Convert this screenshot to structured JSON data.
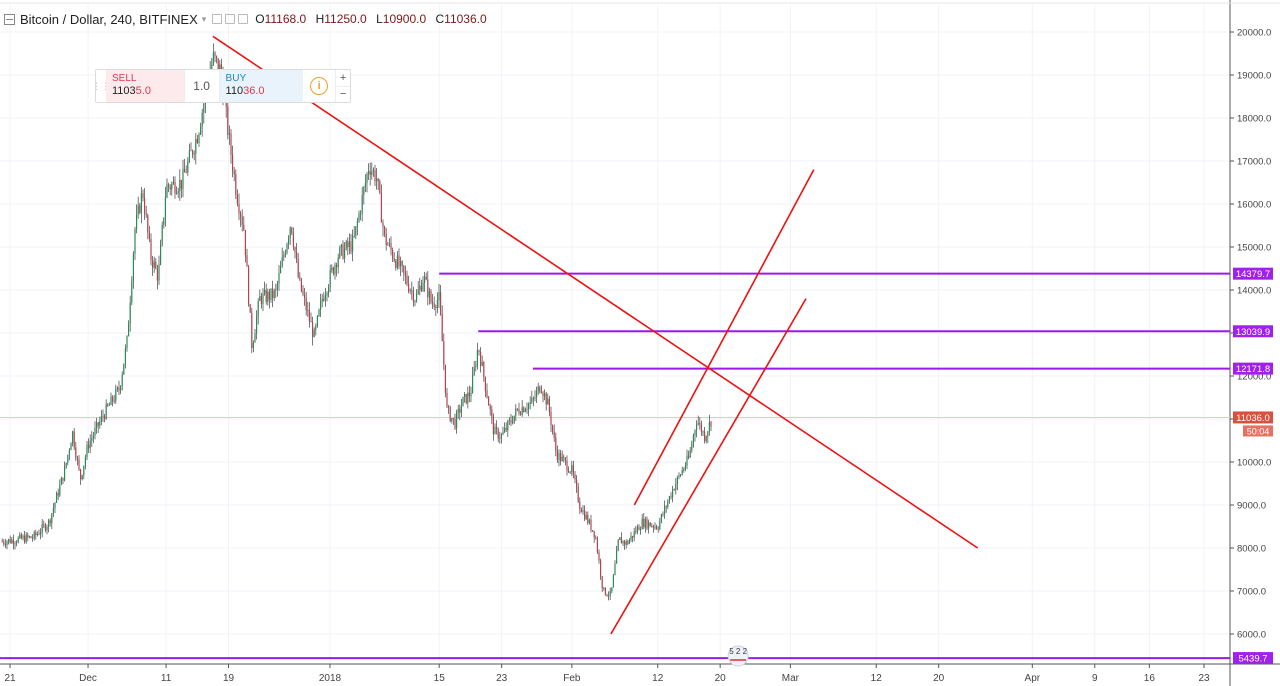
{
  "header": {
    "symbol": "Bitcoin / Dollar, 240, BITFINEX",
    "o_label": "O",
    "o_value": "11168.0",
    "h_label": "H",
    "h_value": "11250.0",
    "l_label": "L",
    "l_value": "10900.0",
    "c_label": "C",
    "c_value": "11036.0"
  },
  "trade_panel": {
    "sell_label": "SELL",
    "sell_price_main": "1103",
    "sell_price_tail": "5.0",
    "quantity": "1.0",
    "buy_label": "BUY",
    "buy_price_main": "110",
    "buy_price_tail": "36.0",
    "info_glyph": "i",
    "plus_glyph": "+",
    "minus_glyph": "−"
  },
  "colors": {
    "trendline": "#ee1111",
    "level_line": "#9b1be0",
    "level_label_bg": "#a020f0",
    "price_label_bg": "#d95040",
    "countdown_bg": "#e87060",
    "grid": "#f0f3f8"
  },
  "chart_data": {
    "type": "candlestick",
    "y_axis": {
      "ylim": [
        5400,
        20400
      ],
      "ticks": [
        "6000.0",
        "7000.0",
        "8000.0",
        "9000.0",
        "10000.0",
        "11000.0",
        "12000.0",
        "13000.0",
        "14000.0",
        "15000.0",
        "16000.0",
        "17000.0",
        "18000.0",
        "19000.0",
        "20000.0"
      ]
    },
    "x_axis": {
      "ticks": [
        {
          "label": "21",
          "date": "2017-11-21"
        },
        {
          "label": "Dec",
          "date": "2017-12-01"
        },
        {
          "label": "11",
          "date": "2017-12-11"
        },
        {
          "label": "19",
          "date": "2017-12-19"
        },
        {
          "label": "2018",
          "date": "2018-01-01"
        },
        {
          "label": "15",
          "date": "2018-01-15"
        },
        {
          "label": "23",
          "date": "2018-01-23"
        },
        {
          "label": "Feb",
          "date": "2018-02-01"
        },
        {
          "label": "12",
          "date": "2018-02-12"
        },
        {
          "label": "20",
          "date": "2018-02-20"
        },
        {
          "label": "Mar",
          "date": "2018-03-01"
        },
        {
          "label": "12",
          "date": "2018-03-12"
        },
        {
          "label": "20",
          "date": "2018-03-20"
        },
        {
          "label": "Apr",
          "date": "2018-04-01"
        },
        {
          "label": "9",
          "date": "2018-04-09"
        },
        {
          "label": "16",
          "date": "2018-04-16"
        },
        {
          "label": "23",
          "date": "2018-04-23"
        }
      ]
    },
    "price_path": [
      [
        "2017-11-20",
        8150
      ],
      [
        "2017-11-24",
        8250
      ],
      [
        "2017-11-26",
        8600
      ],
      [
        "2017-11-28",
        9800
      ],
      [
        "2017-11-29",
        10700
      ],
      [
        "2017-11-30",
        9600
      ],
      [
        "2017-12-01",
        10400
      ],
      [
        "2017-12-03",
        11100
      ],
      [
        "2017-12-05",
        11700
      ],
      [
        "2017-12-06",
        12800
      ],
      [
        "2017-12-07",
        15400
      ],
      [
        "2017-12-08",
        16300
      ],
      [
        "2017-12-09",
        14800
      ],
      [
        "2017-12-10",
        14300
      ],
      [
        "2017-12-11",
        16400
      ],
      [
        "2017-12-13",
        16500
      ],
      [
        "2017-12-15",
        17600
      ],
      [
        "2017-12-17",
        19400
      ],
      [
        "2017-12-18",
        19100
      ],
      [
        "2017-12-19",
        17600
      ],
      [
        "2017-12-20",
        16300
      ],
      [
        "2017-12-21",
        15400
      ],
      [
        "2017-12-22",
        12700
      ],
      [
        "2017-12-23",
        13800
      ],
      [
        "2017-12-25",
        13900
      ],
      [
        "2017-12-27",
        15600
      ],
      [
        "2017-12-28",
        14200
      ],
      [
        "2017-12-30",
        12900
      ],
      [
        "2017-12-31",
        13800
      ],
      [
        "2018-01-02",
        14800
      ],
      [
        "2018-01-04",
        15100
      ],
      [
        "2018-01-06",
        16900
      ],
      [
        "2018-01-07",
        16600
      ],
      [
        "2018-01-08",
        15200
      ],
      [
        "2018-01-10",
        14500
      ],
      [
        "2018-01-12",
        13800
      ],
      [
        "2018-01-13",
        14300
      ],
      [
        "2018-01-14",
        13700
      ],
      [
        "2018-01-15",
        13800
      ],
      [
        "2018-01-16",
        11200
      ],
      [
        "2018-01-17",
        10900
      ],
      [
        "2018-01-18",
        11400
      ],
      [
        "2018-01-19",
        11600
      ],
      [
        "2018-01-20",
        12700
      ],
      [
        "2018-01-22",
        10700
      ],
      [
        "2018-01-23",
        10600
      ],
      [
        "2018-01-25",
        11200
      ],
      [
        "2018-01-27",
        11400
      ],
      [
        "2018-01-28",
        11800
      ],
      [
        "2018-01-29",
        11300
      ],
      [
        "2018-01-30",
        10200
      ],
      [
        "2018-02-01",
        9800
      ],
      [
        "2018-02-02",
        9000
      ],
      [
        "2018-02-04",
        8300
      ],
      [
        "2018-02-05",
        7000
      ],
      [
        "2018-02-06",
        6900
      ],
      [
        "2018-02-07",
        8200
      ],
      [
        "2018-02-08",
        8100
      ],
      [
        "2018-02-10",
        8600
      ],
      [
        "2018-02-12",
        8500
      ],
      [
        "2018-02-14",
        9400
      ],
      [
        "2018-02-16",
        10100
      ],
      [
        "2018-02-17",
        11000
      ],
      [
        "2018-02-18",
        10600
      ],
      [
        "2018-02-19",
        11036
      ]
    ],
    "last_price": "11036.0",
    "countdown": "50:04",
    "horizontal_levels": [
      {
        "value": 14379.7,
        "label": "14379.7",
        "from": "2018-01-15"
      },
      {
        "value": 13039.9,
        "label": "13039.9",
        "from": "2018-01-20"
      },
      {
        "value": 12171.8,
        "label": "12171.8",
        "from": "2018-01-27"
      },
      {
        "value": 5439.7,
        "label": "5439.7",
        "from": "2017-11-20"
      }
    ],
    "trendlines": [
      {
        "from": [
          "2017-12-17",
          19900
        ],
        "to": [
          "2018-03-25",
          8000
        ]
      },
      {
        "from": [
          "2018-02-06",
          6000
        ],
        "to": [
          "2018-03-03",
          13800
        ]
      },
      {
        "from": [
          "2018-02-09",
          9000
        ],
        "to": [
          "2018-03-04",
          16800
        ]
      }
    ],
    "event_marker": {
      "date": "2018-02-20",
      "label": "5 2 2"
    }
  }
}
